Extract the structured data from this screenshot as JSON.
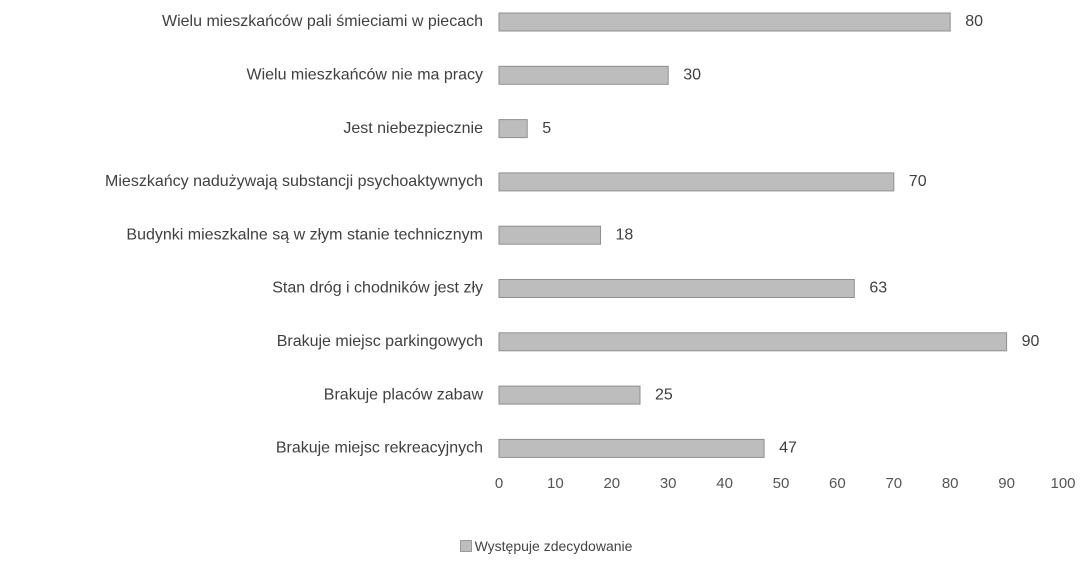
{
  "chart_data": {
    "type": "bar",
    "orientation": "horizontal",
    "categories": [
      "Wielu mieszkańców pali śmieciami w piecach",
      "Wielu mieszkańców nie ma pracy",
      "Jest niebezpiecznie",
      "Mieszkańcy nadużywają substancji psychoaktywnych",
      "Budynki mieszkalne są w złym stanie technicznym",
      "Stan dróg i chodników jest zły",
      "Brakuje miejsc parkingowych",
      "Brakuje placów zabaw",
      "Brakuje miejsc rekreacyjnych"
    ],
    "series": [
      {
        "name": "Występuje zdecydowanie",
        "values": [
          80,
          30,
          5,
          70,
          18,
          63,
          90,
          25,
          47
        ]
      }
    ],
    "xlim": [
      0,
      100
    ],
    "xticks": [
      "0",
      "10",
      "20",
      "30",
      "40",
      "50",
      "60",
      "70",
      "80",
      "90",
      "100"
    ],
    "grid": false,
    "legend_position": "bottom",
    "bar_color": "#bdbdbd"
  }
}
